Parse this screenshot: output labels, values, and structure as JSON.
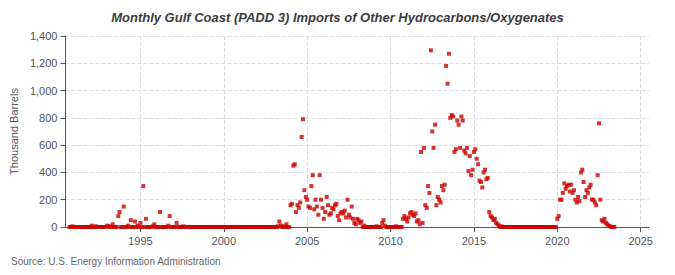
{
  "chart_data": {
    "type": "scatter",
    "title": "Monthly Gulf Coast (PADD 3) Imports of Other Hydrocarbons/Oxygenates",
    "ylabel": "Thousand Barrels",
    "source": "Source: U.S. Energy Information Administration",
    "color": "#cc0000",
    "marker": "square",
    "grid": true,
    "xlim": [
      1990.5,
      2025.5
    ],
    "xticks": [
      1995,
      2000,
      2005,
      2010,
      2015,
      2020,
      2025
    ],
    "ylim": [
      0,
      1400
    ],
    "yticks": [
      0,
      200,
      400,
      600,
      800,
      {
        "value": 1000,
        "label": "1,000"
      },
      {
        "value": 1200,
        "label": "1,200"
      },
      {
        "value": 1400,
        "label": "1,400"
      }
    ],
    "x": [
      1990.75,
      1990.83,
      1990.92,
      1991.0,
      1991.08,
      1991.17,
      1991.25,
      1991.33,
      1991.42,
      1991.5,
      1991.58,
      1991.67,
      1991.75,
      1991.83,
      1991.92,
      1992.0,
      1992.08,
      1992.17,
      1992.25,
      1992.33,
      1992.42,
      1992.5,
      1992.58,
      1992.67,
      1992.75,
      1992.83,
      1993.0,
      1993.08,
      1993.17,
      1993.25,
      1993.33,
      1993.42,
      1993.5,
      1993.58,
      1993.67,
      1993.75,
      1993.83,
      1993.92,
      1994.0,
      1994.08,
      1994.17,
      1994.25,
      1994.33,
      1994.42,
      1994.5,
      1994.58,
      1994.67,
      1994.75,
      1994.83,
      1994.92,
      1995.0,
      1995.08,
      1995.17,
      1995.25,
      1995.33,
      1995.42,
      1995.5,
      1995.58,
      1995.67,
      1995.75,
      1995.83,
      1995.92,
      1996.0,
      1996.08,
      1996.17,
      1996.25,
      1996.33,
      1996.42,
      1996.5,
      1996.58,
      1996.67,
      1996.75,
      1996.83,
      1996.92,
      1997.0,
      1997.08,
      1997.17,
      1997.25,
      1997.33,
      1997.42,
      1997.5,
      1997.58,
      1997.67,
      1997.75,
      1997.83,
      1997.92,
      1998.0,
      1998.08,
      1998.17,
      1998.25,
      1998.33,
      1998.42,
      1998.5,
      1998.58,
      1998.67,
      1998.75,
      1998.83,
      1998.92,
      1999.0,
      1999.08,
      1999.17,
      1999.25,
      1999.33,
      1999.42,
      1999.5,
      1999.58,
      1999.67,
      1999.75,
      1999.83,
      1999.92,
      2000.0,
      2000.08,
      2000.17,
      2000.25,
      2000.33,
      2000.42,
      2000.5,
      2000.58,
      2000.67,
      2000.75,
      2000.83,
      2000.92,
      2001.0,
      2001.08,
      2001.17,
      2001.25,
      2001.33,
      2001.42,
      2001.5,
      2001.58,
      2001.67,
      2001.75,
      2001.83,
      2001.92,
      2002.0,
      2002.08,
      2002.17,
      2002.25,
      2002.33,
      2002.42,
      2002.5,
      2002.58,
      2002.67,
      2002.75,
      2002.83,
      2002.92,
      2003.0,
      2003.08,
      2003.17,
      2003.25,
      2003.33,
      2003.42,
      2003.5,
      2003.58,
      2003.67,
      2003.75,
      2003.83,
      2003.92,
      2004.0,
      2004.08,
      2004.17,
      2004.25,
      2004.33,
      2004.42,
      2004.5,
      2004.58,
      2004.67,
      2004.75,
      2004.83,
      2004.92,
      2005.0,
      2005.08,
      2005.17,
      2005.25,
      2005.33,
      2005.42,
      2005.5,
      2005.58,
      2005.67,
      2005.75,
      2005.83,
      2005.92,
      2006.0,
      2006.08,
      2006.17,
      2006.25,
      2006.33,
      2006.42,
      2006.5,
      2006.58,
      2006.67,
      2006.75,
      2006.83,
      2006.92,
      2007.0,
      2007.08,
      2007.17,
      2007.25,
      2007.33,
      2007.42,
      2007.5,
      2007.58,
      2007.67,
      2007.75,
      2007.83,
      2007.92,
      2008.0,
      2008.08,
      2008.17,
      2008.25,
      2008.33,
      2008.42,
      2008.5,
      2008.58,
      2008.67,
      2008.75,
      2008.83,
      2008.92,
      2009.0,
      2009.08,
      2009.17,
      2009.25,
      2009.33,
      2009.42,
      2009.5,
      2009.58,
      2009.67,
      2009.75,
      2009.83,
      2009.92,
      2010.0,
      2010.08,
      2010.17,
      2010.25,
      2010.33,
      2010.42,
      2010.5,
      2010.58,
      2010.67,
      2010.75,
      2010.83,
      2010.92,
      2011.0,
      2011.08,
      2011.17,
      2011.25,
      2011.33,
      2011.42,
      2011.5,
      2011.58,
      2011.67,
      2011.75,
      2011.83,
      2011.92,
      2012.0,
      2012.08,
      2012.17,
      2012.25,
      2012.33,
      2012.42,
      2012.5,
      2012.58,
      2012.67,
      2012.75,
      2012.83,
      2012.92,
      2013.0,
      2013.08,
      2013.17,
      2013.25,
      2013.33,
      2013.42,
      2013.5,
      2013.58,
      2013.67,
      2013.75,
      2013.83,
      2013.92,
      2014.0,
      2014.08,
      2014.17,
      2014.25,
      2014.33,
      2014.42,
      2014.5,
      2014.58,
      2014.67,
      2014.75,
      2014.83,
      2014.92,
      2015.0,
      2015.08,
      2015.17,
      2015.25,
      2015.33,
      2015.42,
      2015.5,
      2015.58,
      2015.67,
      2015.75,
      2015.83,
      2015.92,
      2016.0,
      2016.08,
      2016.17,
      2016.25,
      2016.33,
      2016.42,
      2016.5,
      2016.58,
      2016.67,
      2016.75,
      2016.83,
      2016.92,
      2017.0,
      2017.08,
      2017.17,
      2017.25,
      2017.33,
      2017.42,
      2017.5,
      2017.58,
      2017.67,
      2017.75,
      2017.83,
      2017.92,
      2018.0,
      2018.08,
      2018.17,
      2018.25,
      2018.33,
      2018.42,
      2018.5,
      2018.58,
      2018.67,
      2018.75,
      2018.83,
      2018.92,
      2019.0,
      2019.08,
      2019.17,
      2019.25,
      2019.33,
      2019.42,
      2019.5,
      2019.58,
      2019.67,
      2019.75,
      2019.83,
      2019.92,
      2020.0,
      2020.08,
      2020.17,
      2020.25,
      2020.33,
      2020.42,
      2020.5,
      2020.58,
      2020.67,
      2020.75,
      2020.83,
      2020.92,
      2021.0,
      2021.08,
      2021.17,
      2021.25,
      2021.33,
      2021.42,
      2021.5,
      2021.58,
      2021.67,
      2021.75,
      2021.83,
      2021.92,
      2022.0,
      2022.08,
      2022.17,
      2022.25,
      2022.33,
      2022.42,
      2022.5,
      2022.58,
      2022.67,
      2022.75,
      2022.83,
      2022.92,
      2023.0,
      2023.08,
      2023.17,
      2023.25,
      2023.33,
      2023.42
    ],
    "values": [
      0,
      0,
      5,
      0,
      0,
      0,
      0,
      0,
      0,
      0,
      0,
      0,
      0,
      0,
      0,
      0,
      10,
      0,
      0,
      5,
      0,
      0,
      0,
      0,
      0,
      0,
      10,
      0,
      5,
      0,
      20,
      0,
      0,
      0,
      80,
      110,
      0,
      0,
      150,
      0,
      0,
      10,
      0,
      50,
      0,
      0,
      40,
      0,
      10,
      0,
      30,
      0,
      300,
      0,
      60,
      0,
      0,
      0,
      0,
      5,
      20,
      0,
      0,
      0,
      110,
      0,
      0,
      0,
      0,
      0,
      10,
      80,
      0,
      0,
      0,
      0,
      30,
      0,
      0,
      0,
      0,
      5,
      0,
      0,
      0,
      0,
      0,
      0,
      0,
      0,
      0,
      0,
      0,
      0,
      0,
      0,
      0,
      0,
      0,
      0,
      0,
      0,
      0,
      0,
      0,
      0,
      0,
      0,
      0,
      0,
      0,
      0,
      0,
      0,
      0,
      0,
      0,
      0,
      0,
      0,
      0,
      0,
      0,
      0,
      0,
      0,
      0,
      0,
      0,
      0,
      0,
      0,
      0,
      0,
      0,
      0,
      0,
      0,
      0,
      0,
      0,
      0,
      0,
      0,
      0,
      0,
      0,
      0,
      0,
      5,
      40,
      10,
      0,
      5,
      0,
      20,
      0,
      0,
      160,
      170,
      450,
      460,
      110,
      160,
      140,
      180,
      660,
      790,
      270,
      220,
      200,
      150,
      140,
      300,
      380,
      130,
      200,
      150,
      90,
      380,
      200,
      140,
      60,
      110,
      220,
      160,
      90,
      100,
      140,
      130,
      160,
      170,
      80,
      50,
      100,
      110,
      100,
      120,
      70,
      200,
      90,
      70,
      150,
      60,
      30,
      20,
      60,
      50,
      30,
      40,
      0,
      10,
      0,
      0,
      0,
      0,
      0,
      0,
      0,
      0,
      5,
      0,
      0,
      0,
      30,
      50,
      10,
      0,
      0,
      0,
      0,
      0,
      0,
      0,
      5,
      0,
      0,
      0,
      0,
      60,
      80,
      60,
      40,
      70,
      100,
      110,
      90,
      80,
      100,
      40,
      50,
      20,
      550,
      30,
      580,
      160,
      140,
      300,
      250,
      1295,
      700,
      580,
      750,
      160,
      220,
      200,
      180,
      300,
      270,
      310,
      1180,
      1050,
      1270,
      800,
      820,
      810,
      550,
      570,
      780,
      750,
      580,
      810,
      780,
      560,
      540,
      580,
      410,
      520,
      380,
      420,
      550,
      570,
      500,
      460,
      340,
      330,
      290,
      400,
      420,
      350,
      360,
      110,
      80,
      70,
      50,
      60,
      30,
      20,
      10,
      0,
      5,
      0,
      0,
      0,
      0,
      0,
      0,
      0,
      0,
      0,
      0,
      0,
      0,
      0,
      0,
      0,
      0,
      0,
      0,
      0,
      0,
      0,
      0,
      0,
      0,
      0,
      0,
      0,
      0,
      0,
      0,
      0,
      0,
      0,
      0,
      0,
      0,
      0,
      0,
      0,
      60,
      80,
      200,
      200,
      250,
      320,
      280,
      300,
      310,
      260,
      310,
      250,
      270,
      200,
      180,
      220,
      190,
      400,
      420,
      330,
      220,
      270,
      250,
      290,
      310,
      200,
      200,
      180,
      160,
      380,
      760,
      200,
      50,
      40,
      60,
      30,
      20,
      10,
      5,
      0,
      0,
      0
    ]
  }
}
